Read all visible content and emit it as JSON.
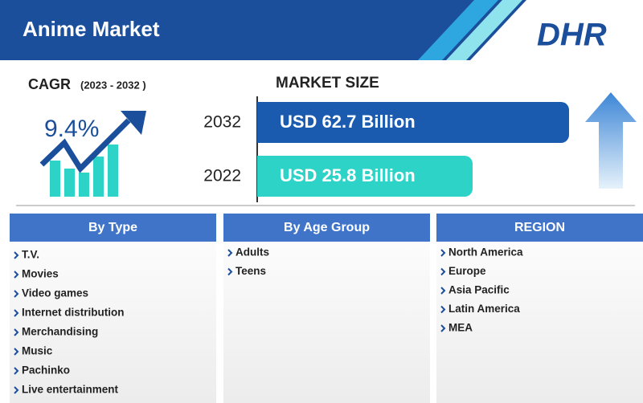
{
  "header": {
    "title": "Anime Market",
    "logo": "DHR"
  },
  "cagr": {
    "label": "CAGR",
    "period": "(2023 - 2032 )",
    "value": "9.4%"
  },
  "market_size": {
    "title": "MARKET SIZE",
    "rows": [
      {
        "year": "2032",
        "value": "USD 62.7 Billion"
      },
      {
        "year": "2022",
        "value": "USD 25.8 Billion"
      }
    ]
  },
  "segments": [
    {
      "title": "By Type",
      "items": [
        "T.V.",
        "Movies",
        "Video games",
        "Internet distribution",
        "Merchandising",
        "Music",
        "Pachinko",
        "Live entertainment"
      ]
    },
    {
      "title": "By Age Group",
      "items": [
        "Adults",
        "Teens"
      ]
    },
    {
      "title": "REGION",
      "items": [
        "North America",
        "Europe",
        "Asia Pacific",
        "Latin America",
        "MEA"
      ]
    }
  ]
}
